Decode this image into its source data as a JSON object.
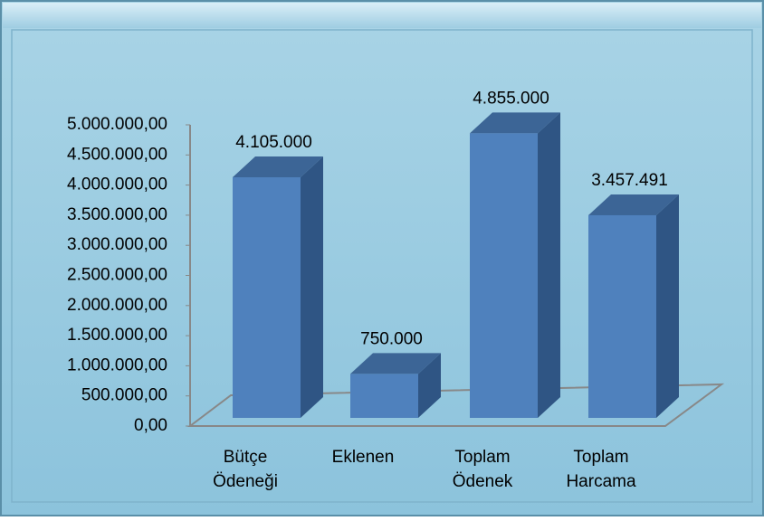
{
  "chart_data": {
    "type": "bar3d",
    "categories": [
      "Bütçe Ödeneği",
      "Eklenen",
      "Toplam Ödenek",
      "Toplam Harcama"
    ],
    "values": [
      4105000,
      750000,
      4855000,
      3457491
    ],
    "value_labels": [
      "4.105.000",
      "750.000",
      "4.855.000",
      "3.457.491"
    ],
    "color": "#4f81bd",
    "ylim": [
      0,
      5000000
    ],
    "yticks": [
      {
        "value": 0,
        "label": "0,00"
      },
      {
        "value": 500000,
        "label": "500.000,00"
      },
      {
        "value": 1000000,
        "label": "1.000.000,00"
      },
      {
        "value": 1500000,
        "label": "1.500.000,00"
      },
      {
        "value": 2000000,
        "label": "2.000.000,00"
      },
      {
        "value": 2500000,
        "label": "2.500.000,00"
      },
      {
        "value": 3000000,
        "label": "3.000.000,00"
      },
      {
        "value": 3500000,
        "label": "3.500.000,00"
      },
      {
        "value": 4000000,
        "label": "4.000.000,00"
      },
      {
        "value": 4500000,
        "label": "4.500.000,00"
      },
      {
        "value": 5000000,
        "label": "5.000.000,00"
      }
    ]
  }
}
